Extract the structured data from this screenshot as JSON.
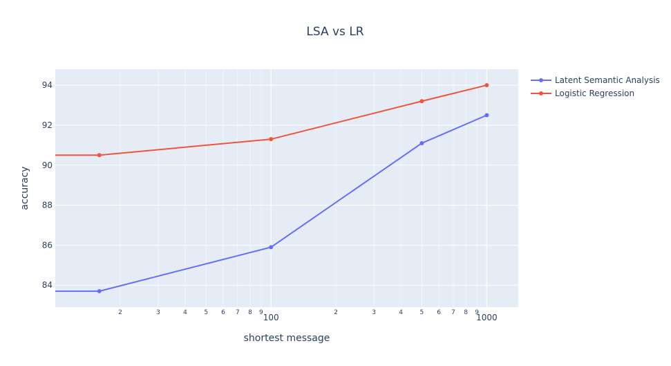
{
  "chart_data": {
    "type": "line",
    "title": "LSA vs LR",
    "xlabel": "shortest message",
    "ylabel": "accuracy",
    "x_scale": "log",
    "xlim": [
      10,
      1400
    ],
    "ylim": [
      82.9,
      94.8
    ],
    "y_ticks": [
      84,
      86,
      88,
      90,
      92,
      94
    ],
    "x_major_ticks": [
      {
        "value": 100,
        "label": "100"
      },
      {
        "value": 1000,
        "label": "1000"
      }
    ],
    "x_minor_ticks": [
      {
        "value": 20,
        "label": "2"
      },
      {
        "value": 30,
        "label": "3"
      },
      {
        "value": 40,
        "label": "4"
      },
      {
        "value": 50,
        "label": "5"
      },
      {
        "value": 60,
        "label": "6"
      },
      {
        "value": 70,
        "label": "7"
      },
      {
        "value": 80,
        "label": "8"
      },
      {
        "value": 90,
        "label": "9"
      },
      {
        "value": 200,
        "label": "2"
      },
      {
        "value": 300,
        "label": "3"
      },
      {
        "value": 400,
        "label": "4"
      },
      {
        "value": 500,
        "label": "5"
      },
      {
        "value": 600,
        "label": "6"
      },
      {
        "value": 700,
        "label": "7"
      },
      {
        "value": 800,
        "label": "8"
      },
      {
        "value": 900,
        "label": "9"
      }
    ],
    "x": [
      1,
      16,
      100,
      500,
      1000
    ],
    "series": [
      {
        "name": "Latent Semantic Analysis",
        "color": "#636efa",
        "values": [
          83.7,
          83.7,
          85.9,
          91.1,
          92.5
        ]
      },
      {
        "name": "Logistic Regression",
        "color": "#ef553b",
        "values": [
          90.5,
          90.5,
          91.3,
          93.2,
          94.0
        ]
      }
    ],
    "grid": true,
    "legend_position": "top-right",
    "plot_bgcolor": "#e5ecf6",
    "text_color": "#2a3f5f"
  }
}
